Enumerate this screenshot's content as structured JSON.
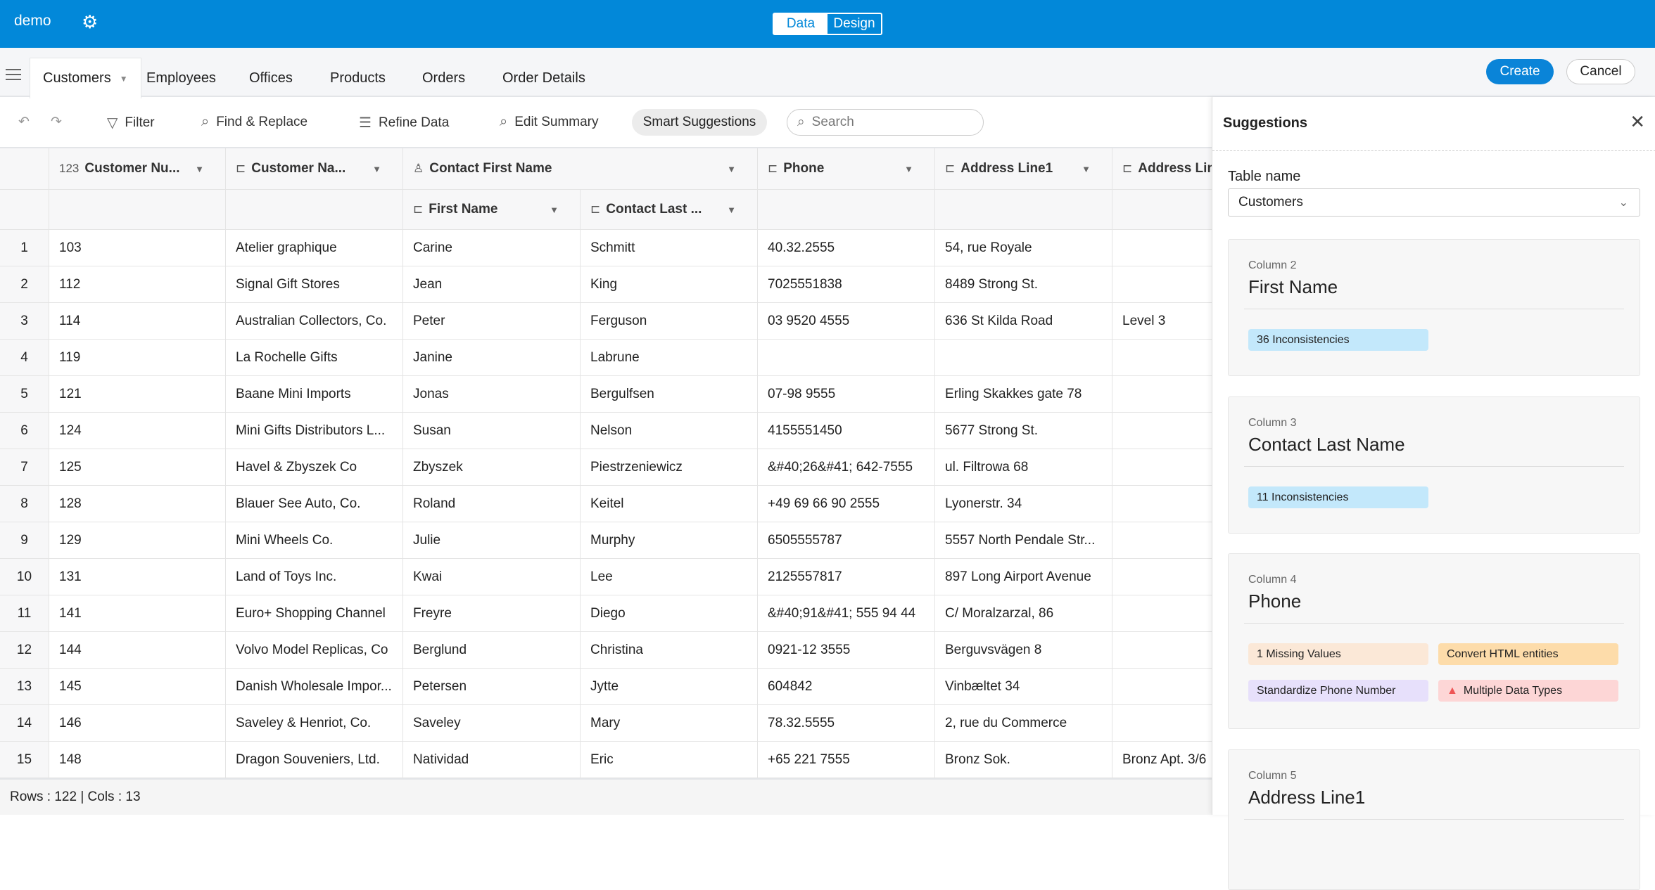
{
  "topbar": {
    "app_name": "demo",
    "modes": [
      "Data",
      "Design"
    ],
    "active_mode": "Data"
  },
  "tabs": [
    "Customers",
    "Employees",
    "Offices",
    "Products",
    "Orders",
    "Order Details"
  ],
  "actions": {
    "create": "Create",
    "cancel": "Cancel"
  },
  "toolbar": {
    "filter": "Filter",
    "find_replace": "Find & Replace",
    "refine": "Refine Data",
    "edit_summary": "Edit Summary",
    "smart": "Smart Suggestions",
    "search_placeholder": "Search"
  },
  "columns": [
    {
      "label": "Customer Nu...",
      "type_icon": "123"
    },
    {
      "label": "Customer Na...",
      "type_icon": "text-icon"
    },
    {
      "label": "Contact First Name",
      "type_icon": "person-icon",
      "sub": [
        {
          "label": "First Name"
        },
        {
          "label": "Contact Last ..."
        }
      ]
    },
    {
      "label": "Phone",
      "type_icon": "text-icon"
    },
    {
      "label": "Address Line1",
      "type_icon": "text-icon"
    },
    {
      "label": "Address Lin",
      "type_icon": "text-icon"
    }
  ],
  "rows": [
    [
      "1",
      "103",
      "Atelier graphique",
      "Carine",
      "Schmitt",
      "40.32.2555",
      "54, rue Royale",
      ""
    ],
    [
      "2",
      "112",
      "Signal Gift Stores",
      "Jean",
      "King",
      "7025551838",
      "8489 Strong St.",
      ""
    ],
    [
      "3",
      "114",
      "Australian Collectors, Co.",
      "Peter",
      "Ferguson",
      "03 9520 4555",
      "636 St Kilda Road",
      "Level 3"
    ],
    [
      "4",
      "119",
      "La Rochelle Gifts",
      "Janine",
      "Labrune",
      "",
      "",
      ""
    ],
    [
      "5",
      "121",
      "Baane Mini Imports",
      "Jonas",
      "Bergulfsen",
      "07-98 9555",
      "Erling Skakkes gate 78",
      ""
    ],
    [
      "6",
      "124",
      "Mini Gifts Distributors L...",
      "Susan",
      "Nelson",
      "4155551450",
      "5677 Strong St.",
      ""
    ],
    [
      "7",
      "125",
      "Havel & Zbyszek Co",
      "Zbyszek",
      "Piestrzeniewicz",
      "&#40;26&#41; 642-7555",
      "ul. Filtrowa 68",
      ""
    ],
    [
      "8",
      "128",
      "Blauer See Auto, Co.",
      "Roland",
      "Keitel",
      "+49 69 66 90 2555",
      "Lyonerstr. 34",
      ""
    ],
    [
      "9",
      "129",
      "Mini Wheels Co.",
      "Julie",
      "Murphy",
      "6505555787",
      "5557 North Pendale Str...",
      ""
    ],
    [
      "10",
      "131",
      "Land of Toys Inc.",
      "Kwai",
      "Lee",
      "2125557817",
      "897 Long Airport Avenue",
      ""
    ],
    [
      "11",
      "141",
      "Euro+ Shopping Channel",
      "Freyre",
      "Diego",
      "&#40;91&#41; 555 94 44",
      "C/ Moralzarzal, 86",
      ""
    ],
    [
      "12",
      "144",
      "Volvo Model Replicas, Co",
      "Berglund",
      "Christina",
      "0921-12 3555",
      "Berguvsvägen 8",
      ""
    ],
    [
      "13",
      "145",
      "Danish Wholesale Impor...",
      "Petersen",
      "Jytte",
      "604842",
      "Vinbæltet 34",
      ""
    ],
    [
      "14",
      "146",
      "Saveley & Henriot, Co.",
      "Saveley",
      "Mary",
      "78.32.5555",
      "2, rue du Commerce",
      ""
    ],
    [
      "15",
      "148",
      "Dragon Souveniers, Ltd.",
      "Natividad",
      "Eric",
      "+65 221 7555",
      "Bronz Sok.",
      "Bronz Apt. 3/6"
    ]
  ],
  "footer": "Rows : 122 | Cols : 13",
  "panel": {
    "title": "Suggestions",
    "table_label": "Table name",
    "table_value": "Customers",
    "cards": [
      {
        "num": "Column 2",
        "name": "First Name",
        "tags": [
          {
            "text": "36  Inconsistencies",
            "color": "#c3e8fb"
          }
        ]
      },
      {
        "num": "Column 3",
        "name": "Contact Last Name",
        "tags": [
          {
            "text": "11  Inconsistencies",
            "color": "#c3e8fb"
          }
        ]
      },
      {
        "num": "Column 4",
        "name": "Phone",
        "tags": [
          {
            "text": "1  Missing Values",
            "color": "#fbe8d7"
          },
          {
            "text": "Convert HTML entities",
            "color": "#fddcaa"
          },
          {
            "text": "Standardize Phone Number",
            "color": "#e7e0fb"
          },
          {
            "text": "Multiple Data Types",
            "color": "#fdd6d6",
            "icon": "warning-icon"
          }
        ]
      },
      {
        "num": "Column 5",
        "name": "Address Line1",
        "tags": []
      }
    ]
  }
}
